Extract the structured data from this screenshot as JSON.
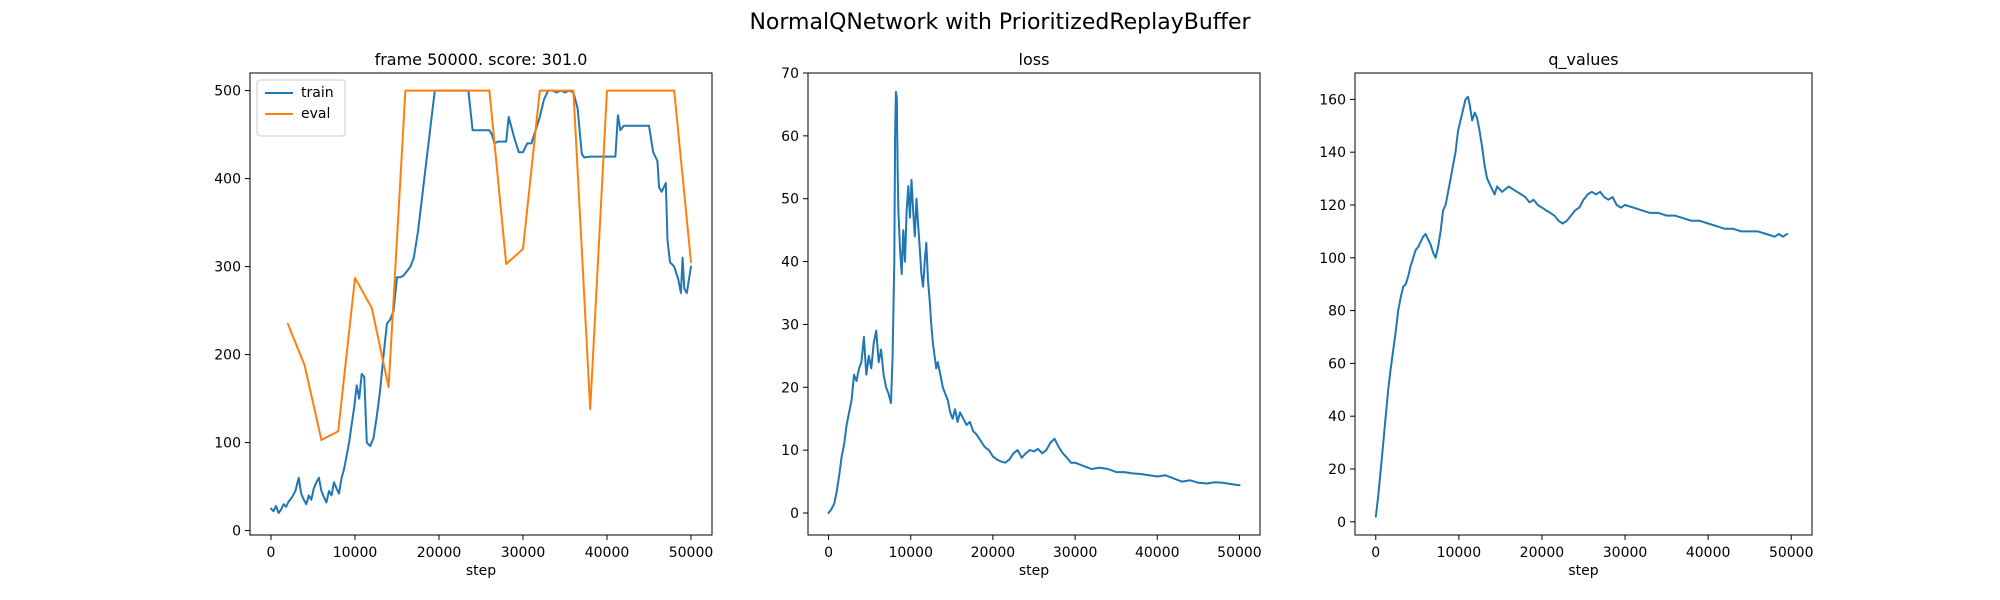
{
  "figure": {
    "suptitle": "NormalQNetwork with PrioritizedReplayBuffer"
  },
  "colors": {
    "train": "#1f77b4",
    "eval": "#ff7f0e"
  },
  "chart_data": [
    {
      "type": "line",
      "title": "frame 50000. score: 301.0",
      "xlabel": "step",
      "ylabel": "",
      "xlim": [
        -2500,
        52500
      ],
      "ylim": [
        -5,
        520
      ],
      "xticks": [
        0,
        10000,
        20000,
        30000,
        40000,
        50000
      ],
      "yticks": [
        0,
        100,
        200,
        300,
        400,
        500
      ],
      "legend": "top-left",
      "grid": false,
      "series": [
        {
          "name": "train",
          "color": "#1f77b4",
          "x": [
            0,
            300,
            600,
            900,
            1200,
            1500,
            1800,
            2100,
            2500,
            2900,
            3300,
            3600,
            3900,
            4200,
            4500,
            4800,
            5100,
            5400,
            5700,
            6000,
            6300,
            6600,
            6900,
            7200,
            7500,
            7800,
            8100,
            8400,
            8700,
            9000,
            9300,
            9600,
            9900,
            10200,
            10500,
            10800,
            11100,
            11400,
            11800,
            12200,
            12600,
            13000,
            13400,
            13800,
            14200,
            14600,
            15000,
            15400,
            15800,
            16200,
            16600,
            17000,
            17500,
            18000,
            18500,
            19000,
            19500,
            20000,
            20500,
            21000,
            21500,
            22000,
            22500,
            23000,
            23500,
            24000,
            24500,
            25000,
            25500,
            26000,
            26300,
            26600,
            27000,
            28000,
            28300,
            29000,
            29500,
            30000,
            30500,
            31000,
            31500,
            32000,
            32500,
            33000,
            33500,
            34000,
            34500,
            35000,
            35500,
            36000,
            36500,
            37000,
            37300,
            38000,
            39000,
            40000,
            41000,
            41300,
            41600,
            42000,
            43000,
            44000,
            45000,
            45500,
            46000,
            46200,
            46500,
            47000,
            47200,
            47500,
            48000,
            48500,
            48800,
            49000,
            49200,
            49500,
            50000
          ],
          "y": [
            25,
            22,
            28,
            20,
            24,
            30,
            27,
            33,
            38,
            45,
            60,
            42,
            35,
            30,
            40,
            35,
            48,
            55,
            60,
            45,
            38,
            32,
            45,
            40,
            55,
            48,
            42,
            60,
            70,
            85,
            100,
            120,
            140,
            165,
            150,
            178,
            175,
            100,
            96,
            105,
            130,
            160,
            200,
            235,
            240,
            250,
            288,
            288,
            290,
            295,
            300,
            310,
            340,
            380,
            420,
            460,
            500,
            500,
            500,
            500,
            500,
            500,
            500,
            500,
            500,
            455,
            455,
            455,
            455,
            455,
            450,
            440,
            442,
            442,
            470,
            445,
            430,
            430,
            440,
            440,
            455,
            470,
            490,
            500,
            500,
            498,
            500,
            498,
            500,
            498,
            480,
            428,
            424,
            425,
            425,
            425,
            425,
            472,
            455,
            460,
            460,
            460,
            460,
            430,
            420,
            390,
            385,
            395,
            330,
            305,
            300,
            285,
            270,
            310,
            275,
            270,
            300
          ]
        },
        {
          "name": "eval",
          "color": "#ff7f0e",
          "x": [
            2000,
            4000,
            6000,
            8000,
            10000,
            12000,
            14000,
            16000,
            18000,
            20000,
            22000,
            24000,
            26000,
            28000,
            30000,
            32000,
            34000,
            36000,
            38000,
            40000,
            42000,
            44000,
            46000,
            48000,
            50000
          ],
          "y": [
            235,
            188,
            103,
            113,
            287,
            253,
            163,
            500,
            500,
            500,
            500,
            500,
            500,
            303,
            320,
            500,
            500,
            500,
            138,
            500,
            500,
            500,
            500,
            500,
            305
          ]
        }
      ]
    },
    {
      "type": "line",
      "title": "loss",
      "xlabel": "step",
      "ylabel": "",
      "xlim": [
        -2500,
        52500
      ],
      "ylim": [
        -3.5,
        70
      ],
      "xticks": [
        0,
        10000,
        20000,
        30000,
        40000,
        50000
      ],
      "yticks": [
        0,
        10,
        20,
        30,
        40,
        50,
        60,
        70
      ],
      "grid": false,
      "series": [
        {
          "color": "#1f77b4",
          "x": [
            0,
            300,
            700,
            1000,
            1300,
            1600,
            1900,
            2200,
            2500,
            2800,
            3100,
            3400,
            3700,
            4000,
            4300,
            4600,
            4900,
            5200,
            5500,
            5800,
            6100,
            6400,
            6700,
            7000,
            7300,
            7600,
            7800,
            8000,
            8100,
            8200,
            8300,
            8400,
            8500,
            8700,
            8900,
            9100,
            9300,
            9500,
            9700,
            9900,
            10100,
            10300,
            10500,
            10700,
            10900,
            11100,
            11300,
            11500,
            11700,
            11900,
            12100,
            12300,
            12500,
            12700,
            12900,
            13100,
            13300,
            13600,
            13900,
            14200,
            14500,
            14800,
            15100,
            15400,
            15700,
            16000,
            16400,
            16800,
            17200,
            17600,
            18000,
            18500,
            19000,
            19500,
            20000,
            20500,
            21000,
            21500,
            22000,
            22500,
            23000,
            23500,
            24000,
            24500,
            25000,
            25500,
            26000,
            26500,
            27000,
            27500,
            28000,
            28500,
            29000,
            29500,
            30000,
            31000,
            32000,
            33000,
            34000,
            35000,
            36000,
            37000,
            38000,
            39000,
            40000,
            41000,
            42000,
            43000,
            44000,
            45000,
            46000,
            47000,
            48000,
            49000,
            50000
          ],
          "y": [
            0,
            0.5,
            1.5,
            3.5,
            6,
            9,
            11,
            14,
            16,
            18,
            22,
            21,
            23,
            24,
            28,
            22,
            25,
            23,
            27,
            29,
            24,
            26,
            22,
            20,
            19,
            17.5,
            25,
            40,
            60,
            67,
            66,
            55,
            48,
            42,
            38,
            45,
            40,
            48,
            52,
            47,
            53,
            48,
            44,
            50,
            46,
            42,
            38,
            36,
            40,
            43,
            37,
            34,
            30,
            27,
            25,
            23,
            24,
            22,
            20,
            19,
            18,
            16,
            15,
            16.5,
            14.5,
            16,
            15,
            14,
            14.5,
            13,
            12.5,
            11.5,
            10.5,
            10,
            9,
            8.5,
            8.2,
            8,
            8.5,
            9.5,
            10,
            8.8,
            9.5,
            10,
            9.8,
            10.2,
            9.5,
            10,
            11.2,
            11.8,
            10.5,
            9.5,
            8.8,
            8,
            8,
            7.5,
            7,
            7.2,
            7,
            6.5,
            6.5,
            6.3,
            6.2,
            6,
            5.8,
            6,
            5.5,
            5,
            5.2,
            4.8,
            4.7,
            4.9,
            4.8,
            4.6,
            4.4
          ]
        }
      ]
    },
    {
      "type": "line",
      "title": "q_values",
      "xlabel": "step",
      "ylabel": "",
      "xlim": [
        -2500,
        52500
      ],
      "ylim": [
        -5,
        170
      ],
      "xticks": [
        0,
        10000,
        20000,
        30000,
        40000,
        50000
      ],
      "yticks": [
        0,
        20,
        40,
        60,
        80,
        100,
        120,
        140,
        160
      ],
      "grid": false,
      "series": [
        {
          "color": "#1f77b4",
          "x": [
            0,
            300,
            600,
            900,
            1200,
            1500,
            1800,
            2100,
            2400,
            2700,
            3000,
            3300,
            3600,
            3900,
            4200,
            4500,
            4800,
            5100,
            5400,
            5700,
            6000,
            6300,
            6600,
            6900,
            7200,
            7500,
            7800,
            8100,
            8400,
            8700,
            9000,
            9300,
            9600,
            9900,
            10200,
            10500,
            10800,
            11100,
            11300,
            11600,
            11900,
            12200,
            12500,
            12800,
            13100,
            13400,
            13700,
            14000,
            14300,
            14600,
            14900,
            15200,
            15600,
            16000,
            16500,
            17000,
            17500,
            18000,
            18500,
            19000,
            19500,
            20000,
            20500,
            21000,
            21500,
            22000,
            22500,
            23000,
            23500,
            24000,
            24500,
            25000,
            25500,
            26000,
            26500,
            27000,
            27500,
            28000,
            28500,
            29000,
            29500,
            30000,
            31000,
            32000,
            33000,
            34000,
            35000,
            36000,
            37000,
            38000,
            39000,
            40000,
            41000,
            42000,
            43000,
            44000,
            45000,
            46000,
            47000,
            48000,
            48500,
            49000,
            49500
          ],
          "y": [
            2,
            10,
            20,
            30,
            40,
            50,
            58,
            65,
            72,
            80,
            85,
            89,
            90,
            93,
            97,
            100,
            103,
            104,
            106,
            108,
            109,
            107,
            105,
            102,
            100,
            104,
            110,
            118,
            120,
            125,
            130,
            135,
            140,
            148,
            152,
            156,
            160,
            161,
            158,
            152,
            155,
            153,
            148,
            142,
            135,
            130,
            128,
            126,
            124,
            127,
            126,
            125,
            126,
            127,
            126,
            125,
            124,
            123,
            121,
            122,
            120,
            119,
            118,
            117,
            116,
            114,
            113,
            114,
            116,
            118,
            119,
            122,
            124,
            125,
            124,
            125,
            123,
            122,
            123,
            120,
            119,
            120,
            119,
            118,
            117,
            117,
            116,
            116,
            115,
            114,
            114,
            113,
            112,
            111,
            111,
            110,
            110,
            110,
            109,
            108,
            109,
            108,
            109
          ]
        }
      ]
    }
  ]
}
